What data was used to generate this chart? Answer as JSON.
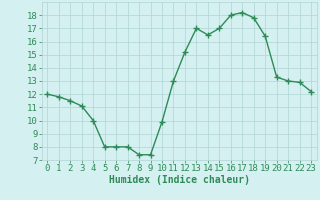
{
  "x": [
    0,
    1,
    2,
    3,
    4,
    5,
    6,
    7,
    8,
    9,
    10,
    11,
    12,
    13,
    14,
    15,
    16,
    17,
    18,
    19,
    20,
    21,
    22,
    23
  ],
  "y": [
    12.0,
    11.8,
    11.5,
    11.1,
    10.0,
    8.0,
    8.0,
    8.0,
    7.4,
    7.4,
    9.9,
    13.0,
    15.2,
    17.0,
    16.5,
    17.0,
    18.0,
    18.2,
    17.8,
    16.4,
    13.3,
    13.0,
    12.9,
    12.2
  ],
  "line_color": "#2e8b57",
  "marker": "+",
  "marker_size": 4,
  "bg_color": "#d4f0f0",
  "grid_color": "#b0d4d4",
  "xlabel": "Humidex (Indice chaleur)",
  "xlim": [
    -0.5,
    23.5
  ],
  "ylim": [
    7,
    19
  ],
  "yticks": [
    7,
    8,
    9,
    10,
    11,
    12,
    13,
    14,
    15,
    16,
    17,
    18
  ],
  "xticks": [
    0,
    1,
    2,
    3,
    4,
    5,
    6,
    7,
    8,
    9,
    10,
    11,
    12,
    13,
    14,
    15,
    16,
    17,
    18,
    19,
    20,
    21,
    22,
    23
  ],
  "tick_color": "#2e8b57",
  "xlabel_fontsize": 7,
  "tick_fontsize": 6.5,
  "linewidth": 1.0
}
